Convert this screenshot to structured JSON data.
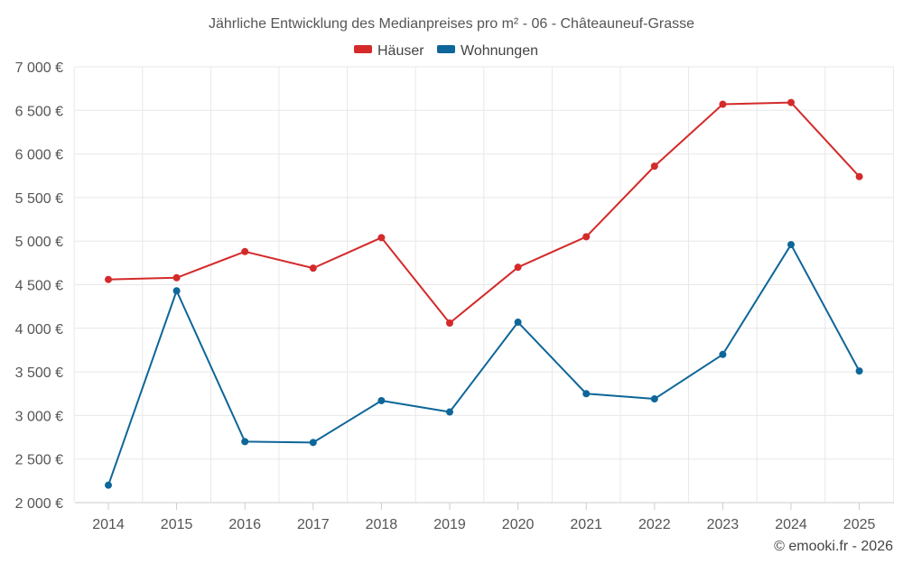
{
  "chart_data": {
    "type": "line",
    "title": "Jährliche Entwicklung des Medianpreises pro m² - 06 - Châteauneuf-Grasse",
    "xlabel": "",
    "ylabel": "",
    "categories": [
      "2014",
      "2015",
      "2016",
      "2017",
      "2018",
      "2019",
      "2020",
      "2021",
      "2022",
      "2023",
      "2024",
      "2025"
    ],
    "ylim": [
      2000,
      7000
    ],
    "yticks": [
      2000,
      2500,
      3000,
      3500,
      4000,
      4500,
      5000,
      5500,
      6000,
      6500,
      7000
    ],
    "ytick_labels": [
      "2 000 €",
      "2 500 €",
      "3 000 €",
      "3 500 €",
      "4 000 €",
      "4 500 €",
      "5 000 €",
      "5 500 €",
      "6 000 €",
      "6 500 €",
      "7 000 €"
    ],
    "grid": true,
    "legend_position": "top",
    "series": [
      {
        "name": "Häuser",
        "color": "#d42a2a",
        "values": [
          4560,
          4580,
          4880,
          4690,
          5040,
          4060,
          4700,
          5050,
          5860,
          6570,
          6590,
          5740
        ]
      },
      {
        "name": "Wohnungen",
        "color": "#0e6699",
        "values": [
          2200,
          4430,
          2700,
          2690,
          3170,
          3040,
          4070,
          3250,
          3190,
          3700,
          4960,
          3510
        ]
      }
    ]
  },
  "credit": "© emooki.fr - 2026"
}
